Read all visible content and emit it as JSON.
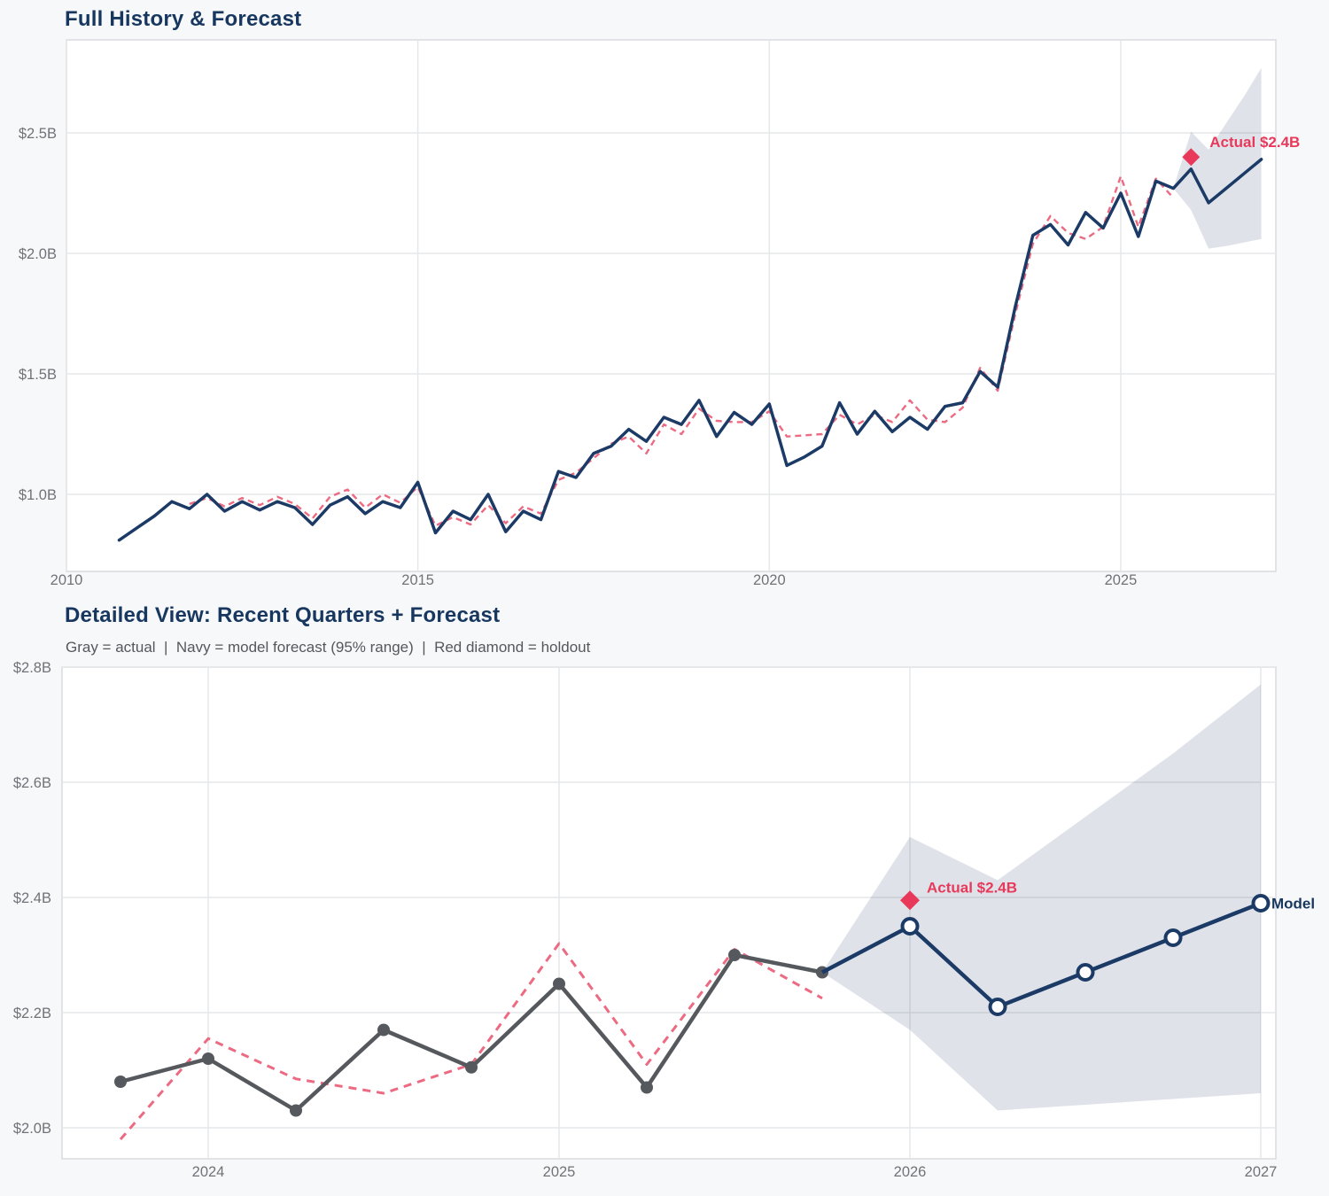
{
  "page": {
    "background": "#f7f8fa"
  },
  "colors": {
    "navy": "#1b3a66",
    "title_navy": "#17375e",
    "pink_dashed": "#ec6a82",
    "red_accent": "#e8395a",
    "gray_actual": "#55585c",
    "band_fill": "rgba(27,58,102,0.14)",
    "grid": "#e6e7e9",
    "spine": "#d8dade",
    "tick_text": "#6f7377",
    "plot_bg": "#ffffff"
  },
  "chart_data": [
    {
      "type": "line",
      "title": "Full History & Forecast",
      "x_ticks": [
        {
          "label": "2010",
          "year": 2010
        },
        {
          "label": "2015",
          "year": 2015
        },
        {
          "label": "2020",
          "year": 2020
        },
        {
          "label": "2025",
          "year": 2025
        }
      ],
      "y_ticks": [
        {
          "label": "$1.0B",
          "value": 1.0
        },
        {
          "label": "$1.5B",
          "value": 1.5
        },
        {
          "label": "$2.0B",
          "value": 2.0
        },
        {
          "label": "$2.5B",
          "value": 2.5
        }
      ],
      "x_range": [
        2010,
        2027.2
      ],
      "y_range": [
        0.68,
        2.89
      ],
      "grid": true,
      "series": [
        {
          "name": "model-fit",
          "style": "pink-dashed",
          "start": 2011.75,
          "step": 0.25,
          "values": [
            0.96,
            0.985,
            0.95,
            0.985,
            0.955,
            0.99,
            0.96,
            0.9,
            0.99,
            1.02,
            0.945,
            1.0,
            0.965,
            1.03,
            0.87,
            0.905,
            0.875,
            0.955,
            0.88,
            0.95,
            0.92,
            1.06,
            1.09,
            1.15,
            1.21,
            1.24,
            1.17,
            1.29,
            1.25,
            1.355,
            1.305,
            1.3,
            1.3,
            1.345,
            1.24,
            1.245,
            1.25,
            1.33,
            1.29,
            1.33,
            1.3,
            1.39,
            1.31,
            1.3,
            1.36,
            1.525,
            1.43,
            1.75,
            2.04,
            2.155,
            2.085,
            2.06,
            2.11,
            2.32,
            2.11,
            2.31,
            2.23
          ]
        },
        {
          "name": "actual-history-and-forecast",
          "style": "navy-solid",
          "start": 2010.75,
          "step": 0.25,
          "values": [
            0.81,
            0.86,
            0.91,
            0.97,
            0.94,
            1.0,
            0.93,
            0.97,
            0.935,
            0.97,
            0.945,
            0.875,
            0.955,
            0.99,
            0.92,
            0.97,
            0.945,
            1.05,
            0.84,
            0.93,
            0.895,
            1.0,
            0.845,
            0.93,
            0.895,
            1.095,
            1.07,
            1.17,
            1.2,
            1.27,
            1.22,
            1.32,
            1.29,
            1.39,
            1.24,
            1.34,
            1.29,
            1.375,
            1.12,
            1.155,
            1.2,
            1.38,
            1.25,
            1.345,
            1.26,
            1.32,
            1.27,
            1.365,
            1.38,
            1.51,
            1.445,
            1.78,
            2.075,
            2.12,
            2.035,
            2.17,
            2.105,
            2.25,
            2.07,
            2.3,
            2.27,
            2.35,
            2.21,
            2.27,
            2.33,
            2.39
          ]
        }
      ],
      "band": {
        "name": "forecast-95-range",
        "start": 2025.75,
        "step": 0.25,
        "upper": [
          2.27,
          2.505,
          2.43,
          2.54,
          2.65,
          2.77
        ],
        "lower": [
          2.27,
          2.18,
          2.02,
          2.03,
          2.045,
          2.06
        ]
      },
      "annotations": [
        {
          "type": "diamond",
          "x": 2026.0,
          "y": 2.4,
          "label": "Actual $2.4B"
        }
      ]
    },
    {
      "type": "line",
      "title": "Detailed View: Recent Quarters + Forecast",
      "subtitle": "Gray = actual  |  Navy = model forecast (95% range)  |  Red diamond = holdout",
      "x_ticks": [
        {
          "label": "2024",
          "year": 2024
        },
        {
          "label": "2025",
          "year": 2025
        },
        {
          "label": "2026",
          "year": 2026
        },
        {
          "label": "2027",
          "year": 2027
        }
      ],
      "y_ticks": [
        {
          "label": "$2.0B",
          "value": 2.0
        },
        {
          "label": "$2.2B",
          "value": 2.2
        },
        {
          "label": "$2.4B",
          "value": 2.4
        },
        {
          "label": "$2.6B",
          "value": 2.6
        },
        {
          "label": "$2.8B",
          "value": 2.8
        }
      ],
      "x_range": [
        2023.58,
        2027.04
      ],
      "y_range": [
        1.946,
        2.8
      ],
      "grid": true,
      "series": [
        {
          "name": "model-fit",
          "style": "pink-dashed",
          "start": 2023.75,
          "step": 0.25,
          "values": [
            1.98,
            2.155,
            2.085,
            2.06,
            2.11,
            2.32,
            2.11,
            2.31,
            2.225
          ]
        },
        {
          "name": "actual-quarters",
          "style": "gray-solid-dots",
          "start": 2023.75,
          "step": 0.25,
          "values": [
            2.08,
            2.12,
            2.03,
            2.17,
            2.105,
            2.25,
            2.07,
            2.3,
            2.27
          ]
        },
        {
          "name": "model-forecast",
          "style": "navy-open-dots",
          "start": 2025.75,
          "step": 0.25,
          "marker_from_index": 1,
          "end_label": "Model",
          "values": [
            2.27,
            2.35,
            2.21,
            2.27,
            2.33,
            2.39
          ]
        }
      ],
      "band": {
        "name": "forecast-95-range",
        "start": 2025.75,
        "step": 0.25,
        "upper": [
          2.27,
          2.505,
          2.43,
          2.54,
          2.65,
          2.77
        ],
        "lower": [
          2.27,
          2.17,
          2.03,
          2.04,
          2.05,
          2.06
        ]
      },
      "annotations": [
        {
          "type": "diamond",
          "x": 2026.0,
          "y": 2.395,
          "label": "Actual $2.4B"
        }
      ]
    }
  ]
}
